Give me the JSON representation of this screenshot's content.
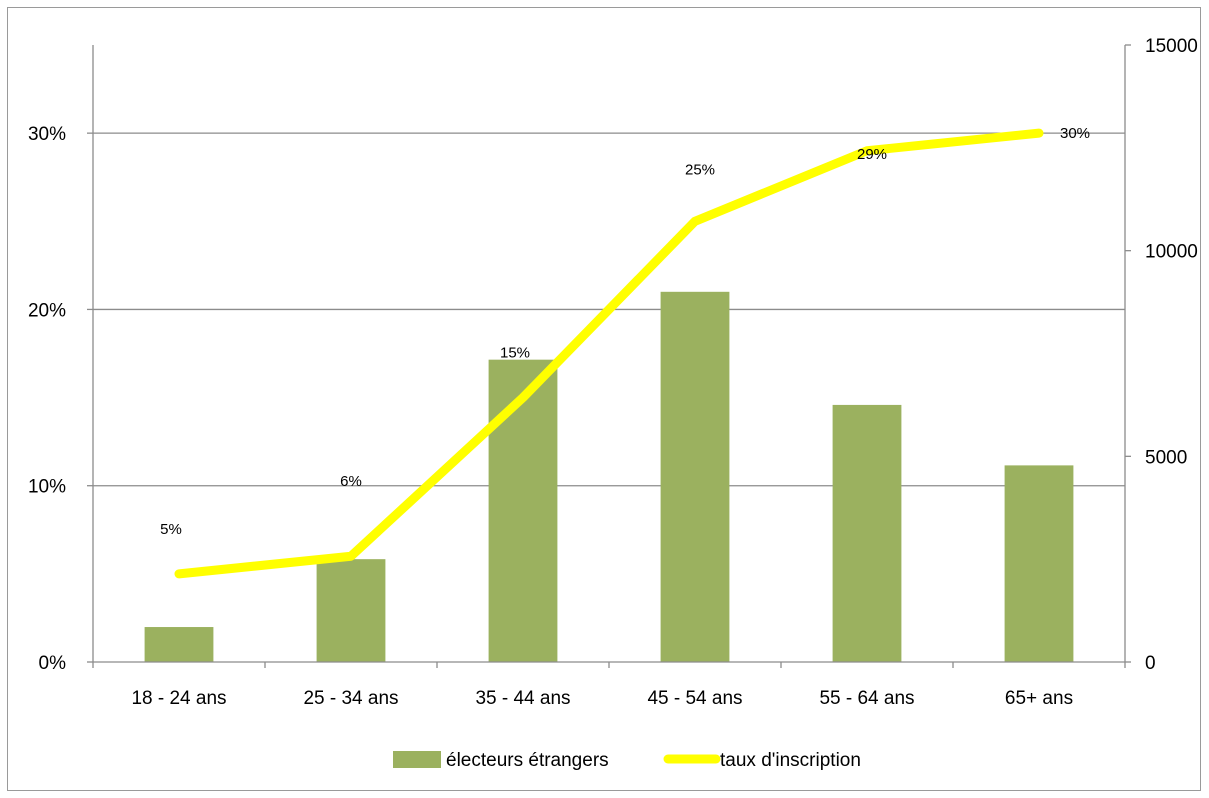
{
  "chart_data": {
    "type": "bar",
    "categories": [
      "18 - 24 ans",
      "25 - 34 ans",
      "35 - 44 ans",
      "45 - 54 ans",
      "55 - 64 ans",
      "65+ ans"
    ],
    "series": [
      {
        "name": "électeurs étrangers",
        "type": "bar",
        "axis": "right",
        "values": [
          850,
          2500,
          7350,
          9000,
          6250,
          4780
        ],
        "color": "#9bb15f"
      },
      {
        "name": "taux d'inscription",
        "type": "line",
        "axis": "left",
        "values": [
          5,
          6,
          15,
          25,
          29,
          30
        ],
        "labels": [
          "5%",
          "6%",
          "15%",
          "25%",
          "29%",
          "30%"
        ],
        "color": "#ffff00"
      }
    ],
    "y_left": {
      "min": 0,
      "max": 35,
      "ticks": [
        0,
        10,
        20,
        30
      ],
      "tick_labels": [
        "0%",
        "10%",
        "20%",
        "30%"
      ]
    },
    "y_right": {
      "min": 0,
      "max": 15000,
      "ticks": [
        0,
        5000,
        10000,
        15000
      ],
      "tick_labels": [
        "0",
        "5000",
        "10000",
        "15000"
      ]
    },
    "grid": true,
    "legend_position": "bottom",
    "title": "",
    "xlabel": "",
    "ylabel": ""
  }
}
